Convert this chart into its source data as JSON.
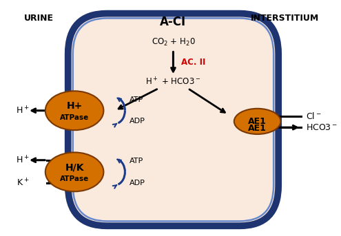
{
  "title": "A-CI",
  "urine_label": "URINE",
  "interstitium_label": "INTERSTITIUM",
  "cell_bg": "#faeade",
  "cell_border_outer": "#1e3470",
  "cell_border_inner": "#6888cc",
  "co2_text": "CO$_2$ + H$_2$0",
  "acii_text": "AC. II",
  "acii_color": "#cc0000",
  "hco3_text": "H$^+$ + HCO3$^-$",
  "atp1_text": "ATP",
  "adp1_text": "ADP",
  "atp2_text": "ATP",
  "adp2_text": "ADP",
  "h_plus_line1": "H+",
  "h_plus_line2": "ATPase",
  "hk_line1": "H/K",
  "hk_line2": "ATPase",
  "ae1_text": "AE1",
  "h_left1": "H$^+$",
  "h_left2": "H$^+$",
  "k_left": "K$^+$",
  "cl_right": "Cl$^-$",
  "hco3_right": "HCO3$^-$",
  "fig_width": 4.95,
  "fig_height": 3.43,
  "dpi": 100
}
